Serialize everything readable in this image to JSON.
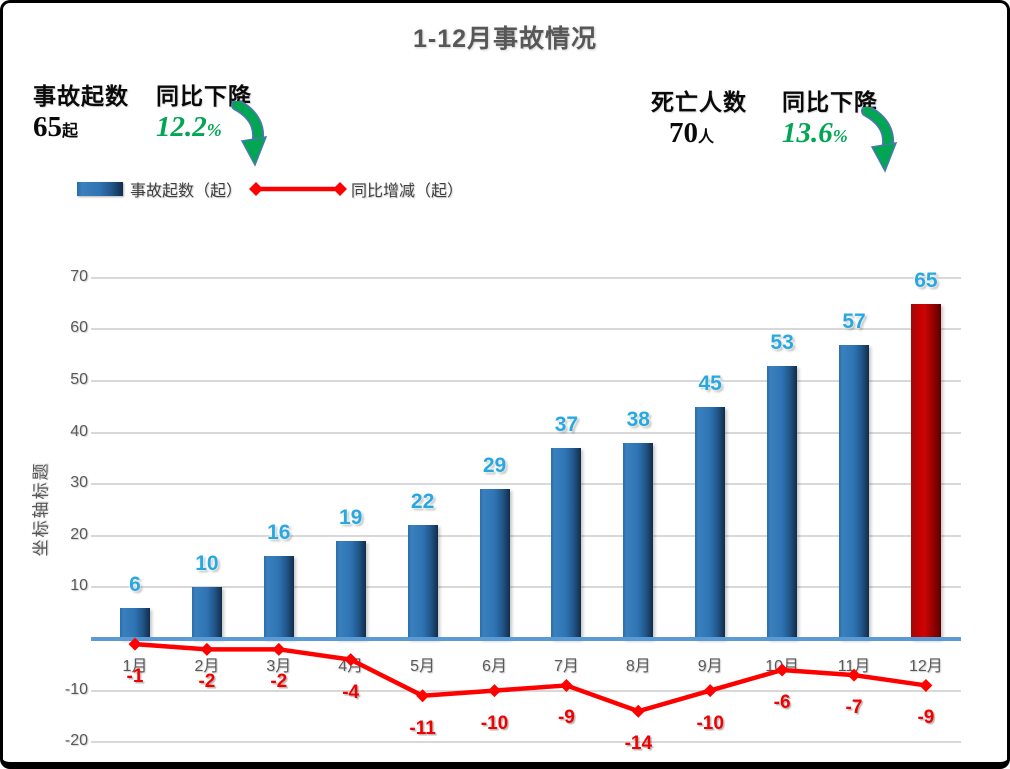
{
  "title": "1-12月事故情况",
  "stats": {
    "left": {
      "label": "事故起数",
      "value": "65",
      "unit": "起",
      "change_label": "同比下降",
      "change_value": "12.2",
      "change_unit": "%"
    },
    "right": {
      "label": "死亡人数",
      "value": "70",
      "unit": "人",
      "change_label": "同比下降",
      "change_value": "13.6",
      "change_unit": "%"
    }
  },
  "legend": {
    "bar_label": "事故起数（起）",
    "line_label": "同比增减（起）"
  },
  "chart_data": {
    "type": "combo",
    "categories": [
      "1月",
      "2月",
      "3月",
      "4月",
      "5月",
      "6月",
      "7月",
      "8月",
      "9月",
      "10月",
      "11月",
      "12月"
    ],
    "series": [
      {
        "name": "事故起数（起）",
        "type": "bar",
        "values": [
          6,
          10,
          16,
          19,
          22,
          29,
          37,
          38,
          45,
          53,
          57,
          65
        ],
        "color": "#2E74B5",
        "highlight_index": 11,
        "highlight_color": "#C00000"
      },
      {
        "name": "同比增减（起）",
        "type": "line",
        "values": [
          -1,
          -2,
          -2,
          -4,
          -11,
          -10,
          -9,
          -14,
          -10,
          -6,
          -7,
          -9
        ],
        "color": "#FF0000"
      }
    ],
    "title": "1-12月事故情况",
    "xlabel": "",
    "ylabel": "坐标轴标题",
    "ylim": [
      -20,
      70
    ],
    "yticks": [
      70,
      60,
      50,
      40,
      30,
      20,
      10,
      -10,
      -20
    ],
    "grid": true,
    "legend_position": "top-left"
  },
  "colors": {
    "accent_green": "#00A651",
    "bar_blue": "#2E74B5",
    "bar_red": "#C00000",
    "line_red": "#FF0000",
    "label_blue": "#29A8DF",
    "axis_gray": "#595959",
    "zero_line_blue": "#5B9BD5"
  }
}
